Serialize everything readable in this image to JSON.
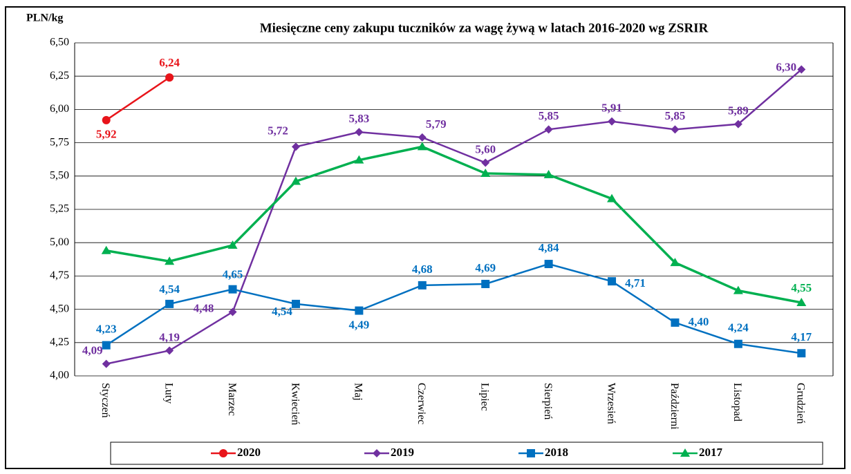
{
  "chart_data": {
    "type": "line",
    "title": "Miesięczne ceny zakupu tuczników za wagę żywą w latach 2016-2020 wg ZSRIR",
    "y_label": "PLN/kg",
    "categories": [
      "Styczeń",
      "Luty",
      "Marzec",
      "Kwiecień",
      "Maj",
      "Czerwiec",
      "Lipiec",
      "Sierpień",
      "Wrzesień",
      "Październi",
      "Listopad",
      "Grudzień"
    ],
    "series": [
      {
        "name": "2020",
        "color": "#e8141a",
        "marker": "circle",
        "values": [
          5.92,
          6.24,
          null,
          null,
          null,
          null,
          null,
          null,
          null,
          null,
          null,
          null
        ],
        "value_labels": [
          "5,92",
          "6,24",
          null,
          null,
          null,
          null,
          null,
          null,
          null,
          null,
          null,
          null
        ]
      },
      {
        "name": "2019",
        "color": "#7030a0",
        "marker": "diamond",
        "values": [
          4.09,
          4.19,
          4.48,
          5.72,
          5.83,
          5.79,
          5.6,
          5.85,
          5.91,
          5.85,
          5.89,
          6.3
        ],
        "value_labels": [
          "4,09",
          "4,19",
          "4,48",
          "5,72",
          "5,83",
          "5,79",
          "5,60",
          "5,85",
          "5,91",
          "5,85",
          "5,89",
          "6,30"
        ]
      },
      {
        "name": "2018",
        "color": "#0070c0",
        "marker": "square",
        "values": [
          4.23,
          4.54,
          4.65,
          4.54,
          4.49,
          4.68,
          4.69,
          4.84,
          4.71,
          4.4,
          4.24,
          4.17
        ],
        "value_labels": [
          "4,23",
          "4,54",
          "4,65",
          "4,54",
          "4,49",
          "4,68",
          "4,69",
          "4,84",
          "4,71",
          "4,40",
          "4,24",
          "4,17"
        ]
      },
      {
        "name": "2017",
        "color": "#00b050",
        "marker": "triangle",
        "values": [
          4.94,
          4.86,
          4.98,
          5.46,
          5.62,
          5.72,
          5.52,
          5.51,
          5.33,
          4.85,
          4.64,
          4.55
        ],
        "value_labels": [
          null,
          null,
          null,
          null,
          null,
          null,
          null,
          null,
          null,
          null,
          null,
          "4,55"
        ]
      }
    ],
    "ylim": [
      4,
      6.5
    ],
    "yticks": [
      {
        "value": 4,
        "label": "4,00"
      },
      {
        "value": 4.25,
        "label": "4,25"
      },
      {
        "value": 4.5,
        "label": "4,50"
      },
      {
        "value": 4.75,
        "label": "4,75"
      },
      {
        "value": 5,
        "label": "5,00"
      },
      {
        "value": 5.25,
        "label": "5,25"
      },
      {
        "value": 5.5,
        "label": "5,50"
      },
      {
        "value": 5.75,
        "label": "5,75"
      },
      {
        "value": 6,
        "label": "6,00"
      },
      {
        "value": 6.25,
        "label": "6,25"
      },
      {
        "value": 6.5,
        "label": "6,50"
      }
    ],
    "grid": true,
    "legend": "bottom"
  }
}
